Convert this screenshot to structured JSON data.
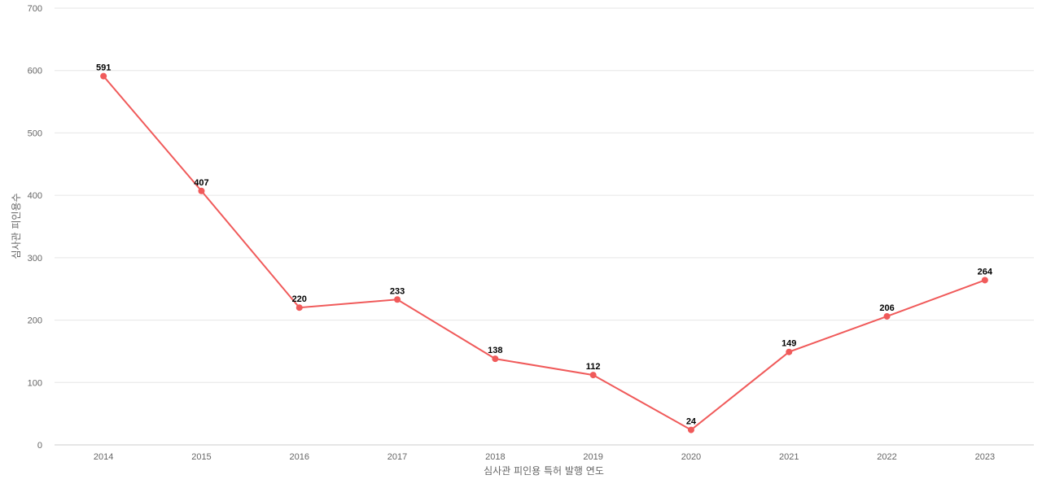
{
  "chart_data": {
    "type": "line",
    "title": "",
    "xlabel": "심사관 피인용 특허 발행 연도",
    "ylabel": "심사관 피인용수",
    "categories": [
      "2014",
      "2015",
      "2016",
      "2017",
      "2018",
      "2019",
      "2020",
      "2021",
      "2022",
      "2023"
    ],
    "series": [
      {
        "values": [
          591,
          407,
          220,
          233,
          138,
          112,
          24,
          149,
          206,
          264
        ],
        "color": "#f05a5a"
      }
    ],
    "ylim": [
      0,
      700
    ],
    "yticks": [
      0,
      100,
      200,
      300,
      400,
      500,
      600,
      700
    ],
    "grid": true,
    "legend": "none",
    "data_labels": true
  }
}
